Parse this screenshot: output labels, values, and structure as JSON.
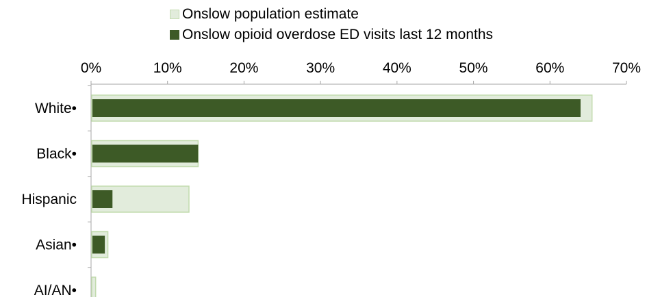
{
  "chart_data": {
    "type": "bar",
    "orientation": "horizontal",
    "categories": [
      "White•",
      "Black•",
      "Hispanic",
      "Asian•",
      "AI/AN•"
    ],
    "series": [
      {
        "name": "Onslow population estimate",
        "values": [
          65.5,
          14,
          12.8,
          2.2,
          0.6
        ],
        "color": "#e2ecdc",
        "border": "#c2dbae"
      },
      {
        "name": "Onslow opioid overdose ED visits last 12 months",
        "values": [
          64,
          14,
          2.8,
          1.8,
          0
        ],
        "color": "#3d5a26"
      }
    ],
    "xlim": [
      0,
      70
    ],
    "xticks": [
      "0%",
      "10%",
      "20%",
      "30%",
      "40%",
      "50%",
      "60%",
      "70%"
    ],
    "xaxis_position": "top",
    "grid": false,
    "legend_position": "top",
    "title": "",
    "xlabel": "",
    "ylabel": ""
  }
}
